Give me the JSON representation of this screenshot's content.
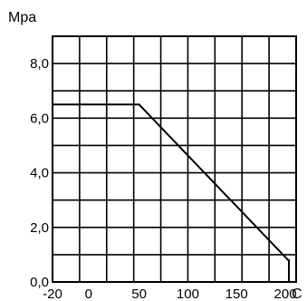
{
  "chart_data": {
    "type": "line",
    "title": "",
    "ylabel": "Mpa",
    "xlabel": "C",
    "x_ticks": [
      {
        "value": -20,
        "label": "-20"
      },
      {
        "value": 0,
        "label": "0"
      },
      {
        "value": 50,
        "label": "50"
      },
      {
        "value": 100,
        "label": "100"
      },
      {
        "value": 150,
        "label": "150"
      },
      {
        "value": 200,
        "label": "200"
      }
    ],
    "y_ticks": [
      {
        "value": 0,
        "label": "0,0"
      },
      {
        "value": 2,
        "label": "2,0"
      },
      {
        "value": 4,
        "label": "4,0"
      },
      {
        "value": 6,
        "label": "6,0"
      },
      {
        "value": 8,
        "label": "8,0"
      }
    ],
    "xlim": [
      -20,
      230
    ],
    "ylim": [
      0,
      9
    ],
    "grid": true,
    "series": [
      {
        "x": [
          -20,
          50,
          208,
          210,
          210
        ],
        "y": [
          6.5,
          6.5,
          0.8,
          0.8,
          0
        ]
      }
    ],
    "colors": {
      "line": "#000000",
      "grid": "#000000"
    }
  }
}
